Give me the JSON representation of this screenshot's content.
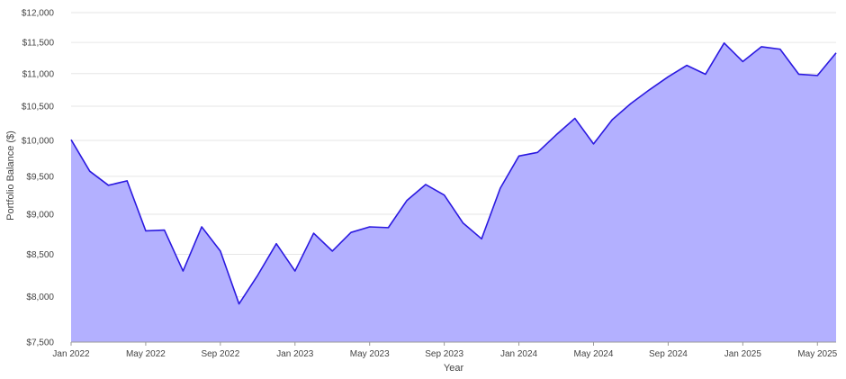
{
  "chart_data": {
    "type": "area",
    "xlabel": "Year",
    "ylabel": "Portfolio Balance ($)",
    "y_scale": "log",
    "ylim": [
      7500,
      12000
    ],
    "grid": true,
    "legend": "none",
    "colors": {
      "line": "#2b19e0",
      "fill": "#b3b0ff",
      "grid": "#e6e6e6",
      "axis": "#999999"
    },
    "y_ticks": [
      {
        "value": 7500,
        "label": "$7,500"
      },
      {
        "value": 8000,
        "label": "$8,000"
      },
      {
        "value": 8500,
        "label": "$8,500"
      },
      {
        "value": 9000,
        "label": "$9,000"
      },
      {
        "value": 9500,
        "label": "$9,500"
      },
      {
        "value": 10000,
        "label": "$10,000"
      },
      {
        "value": 10500,
        "label": "$10,500"
      },
      {
        "value": 11000,
        "label": "$11,000"
      },
      {
        "value": 11500,
        "label": "$11,500"
      },
      {
        "value": 12000,
        "label": "$12,000"
      }
    ],
    "x_ticks": [
      {
        "value": "2022-01",
        "label": "Jan 2022"
      },
      {
        "value": "2022-05",
        "label": "May 2022"
      },
      {
        "value": "2022-09",
        "label": "Sep 2022"
      },
      {
        "value": "2023-01",
        "label": "Jan 2023"
      },
      {
        "value": "2023-05",
        "label": "May 2023"
      },
      {
        "value": "2023-09",
        "label": "Sep 2023"
      },
      {
        "value": "2024-01",
        "label": "Jan 2024"
      },
      {
        "value": "2024-05",
        "label": "May 2024"
      },
      {
        "value": "2024-09",
        "label": "Sep 2024"
      },
      {
        "value": "2025-01",
        "label": "Jan 2025"
      },
      {
        "value": "2025-05",
        "label": "May 2025"
      }
    ],
    "x": [
      "2022-01",
      "2022-02",
      "2022-03",
      "2022-04",
      "2022-05",
      "2022-06",
      "2022-07",
      "2022-08",
      "2022-09",
      "2022-10",
      "2022-11",
      "2022-12",
      "2023-01",
      "2023-02",
      "2023-03",
      "2023-04",
      "2023-05",
      "2023-06",
      "2023-07",
      "2023-08",
      "2023-09",
      "2023-10",
      "2023-11",
      "2023-12",
      "2024-01",
      "2024-02",
      "2024-03",
      "2024-04",
      "2024-05",
      "2024-06",
      "2024-07",
      "2024-08",
      "2024-09",
      "2024-10",
      "2024-11",
      "2024-12",
      "2025-01",
      "2025-02",
      "2025-03",
      "2025-04",
      "2025-05",
      "2025-06"
    ],
    "series": [
      {
        "values": [
          10010,
          9570,
          9380,
          9440,
          8790,
          8800,
          8300,
          8840,
          8540,
          7920,
          8250,
          8630,
          8300,
          8760,
          8540,
          8770,
          8840,
          8830,
          9180,
          9390,
          9250,
          8890,
          8690,
          9340,
          9780,
          9830,
          10080,
          10320,
          9950,
          10300,
          10540,
          10750,
          10950,
          11130,
          10990,
          11490,
          11190,
          11430,
          11390,
          10990,
          10970,
          11330
        ]
      }
    ]
  }
}
